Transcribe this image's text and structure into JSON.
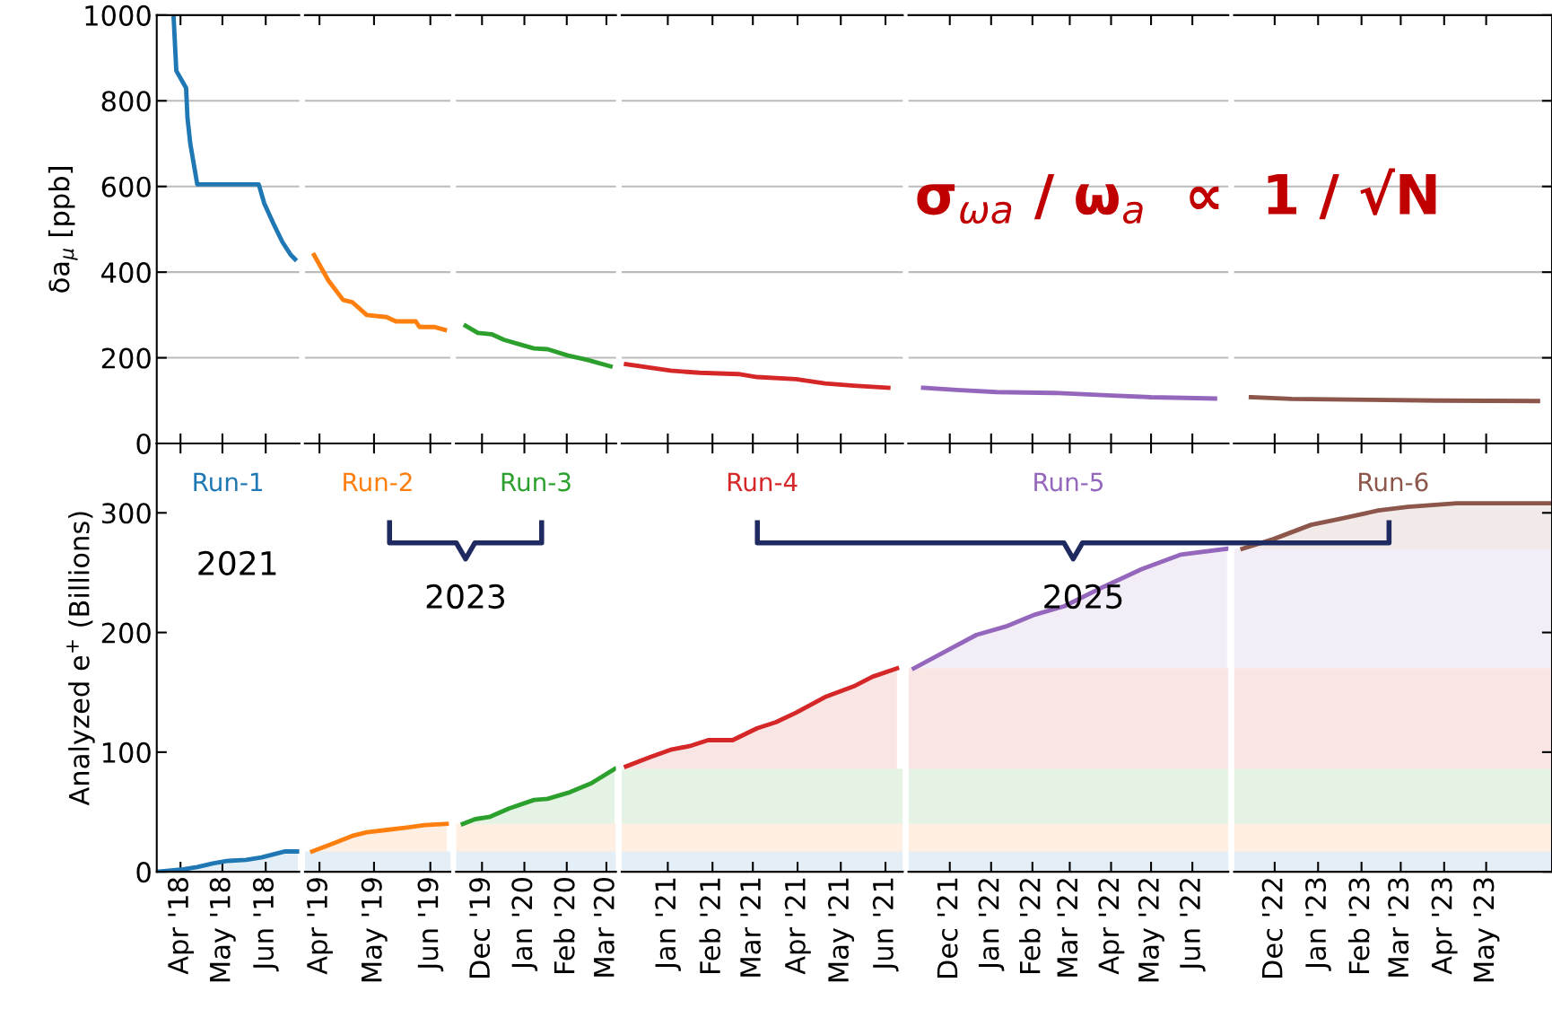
{
  "chart_data": [
    {
      "type": "line",
      "ylabel": "δa$_{μ}$ [ppb]",
      "xlim": [
        "2018-03-15",
        "2018-06-25"
      ],
      "ylim": [
        0,
        1000
      ],
      "yticks": [
        0,
        200,
        400,
        600,
        800,
        1000
      ],
      "grid": "y",
      "tick_labels": "y",
      "xticks": [
        {
          "value": "2018-04-01",
          "label": null
        },
        {
          "value": "2018-05-01",
          "label": null
        },
        {
          "value": "2018-06-01",
          "label": null
        }
      ],
      "series": [
        {
          "color": "#1f77b4",
          "x": [
            "2018-03-27",
            "2018-03-29",
            "2018-04-05",
            "2018-04-06",
            "2018-04-08",
            "2018-04-13",
            "2018-05-27",
            "2018-05-31",
            "2018-06-07",
            "2018-06-13",
            "2018-06-19",
            "2018-06-22"
          ],
          "values": [
            1000,
            870,
            830,
            760,
            700,
            605,
            605,
            560,
            510,
            470,
            440,
            430
          ]
        }
      ]
    },
    {
      "type": "line",
      "xlim": [
        "2019-03-24",
        "2019-06-12"
      ],
      "ylim": [
        0,
        1000
      ],
      "yticks": [
        0,
        200,
        400,
        600,
        800,
        1000
      ],
      "grid": "y",
      "tick_labels": false,
      "xticks": [
        {
          "value": "2019-04-01",
          "label": null
        },
        {
          "value": "2019-05-01",
          "label": null
        },
        {
          "value": "2019-06-01",
          "label": null
        }
      ],
      "series": [
        {
          "color": "#ff7f0e",
          "x": [
            "2019-03-29",
            "2019-04-06",
            "2019-04-14",
            "2019-04-19",
            "2019-04-27",
            "2019-05-08",
            "2019-05-13",
            "2019-05-24",
            "2019-05-26",
            "2019-06-03",
            "2019-06-09"
          ],
          "values": [
            440,
            380,
            335,
            330,
            300,
            295,
            285,
            285,
            272,
            272,
            265
          ]
        }
      ]
    },
    {
      "type": "line",
      "xlim": [
        "2019-11-12",
        "2020-03-08"
      ],
      "ylim": [
        0,
        1000
      ],
      "yticks": [
        0,
        200,
        400,
        600,
        800,
        1000
      ],
      "grid": "y",
      "tick_labels": false,
      "xticks": [
        {
          "value": "2019-12-01",
          "label": null
        },
        {
          "value": "2020-01-01",
          "label": null
        },
        {
          "value": "2020-02-01",
          "label": null
        },
        {
          "value": "2020-03-01",
          "label": null
        }
      ],
      "series": [
        {
          "color": "#2ca02c",
          "x": [
            "2019-11-19",
            "2019-11-28",
            "2019-12-08",
            "2019-12-17",
            "2019-12-28",
            "2020-01-08",
            "2020-01-18",
            "2020-02-02",
            "2020-02-16",
            "2020-03-04"
          ],
          "values": [
            275,
            258,
            255,
            242,
            232,
            222,
            220,
            205,
            195,
            180
          ]
        }
      ]
    },
    {
      "type": "line",
      "xlim": [
        "2020-11-30",
        "2021-06-13"
      ],
      "ylim": [
        0,
        1000
      ],
      "yticks": [
        0,
        200,
        400,
        600,
        800,
        1000
      ],
      "grid": "y",
      "tick_labels": false,
      "xticks": [
        {
          "value": "2021-01-01",
          "label": null
        },
        {
          "value": "2021-02-01",
          "label": null
        },
        {
          "value": "2021-03-01",
          "label": null
        },
        {
          "value": "2021-04-01",
          "label": null
        },
        {
          "value": "2021-05-01",
          "label": null
        },
        {
          "value": "2021-06-01",
          "label": null
        }
      ],
      "series": [
        {
          "color": "#d62728",
          "x": [
            "2020-12-03",
            "2021-01-03",
            "2021-01-23",
            "2021-02-19",
            "2021-03-04",
            "2021-03-31",
            "2021-04-20",
            "2021-05-10",
            "2021-06-03"
          ],
          "values": [
            185,
            170,
            165,
            162,
            155,
            150,
            140,
            135,
            130
          ]
        }
      ]
    },
    {
      "type": "line",
      "xlim": [
        "2021-10-31",
        "2022-06-28"
      ],
      "ylim": [
        0,
        1000
      ],
      "yticks": [
        0,
        200,
        400,
        600,
        800,
        1000
      ],
      "grid": "y",
      "tick_labels": false,
      "xticks": [
        {
          "value": "2021-12-01",
          "label": null
        },
        {
          "value": "2022-01-01",
          "label": null
        },
        {
          "value": "2022-02-01",
          "label": null
        },
        {
          "value": "2022-03-01",
          "label": null
        },
        {
          "value": "2022-04-01",
          "label": null
        },
        {
          "value": "2022-05-01",
          "label": null
        },
        {
          "value": "2022-06-01",
          "label": null
        }
      ],
      "annotations": [
        "σ$_{ωa}$ / ω$_{a}$  ∝  1 / √N"
      ],
      "series": [
        {
          "color": "#9467bd",
          "x": [
            "2021-11-11",
            "2021-12-06",
            "2022-01-05",
            "2022-02-17",
            "2022-04-02",
            "2022-05-01",
            "2022-06-18"
          ],
          "values": [
            130,
            125,
            120,
            118,
            112,
            108,
            105
          ]
        }
      ]
    },
    {
      "type": "line",
      "xlim": [
        "2022-11-02",
        "2023-06-17"
      ],
      "ylim": [
        0,
        1000
      ],
      "yticks": [
        0,
        200,
        400,
        600,
        800,
        1000
      ],
      "grid": "y",
      "tick_labels": false,
      "xticks": [
        {
          "value": "2022-12-01",
          "label": null
        },
        {
          "value": "2023-01-01",
          "label": null
        },
        {
          "value": "2023-02-01",
          "label": null
        },
        {
          "value": "2023-03-01",
          "label": null
        },
        {
          "value": "2023-04-01",
          "label": null
        },
        {
          "value": "2023-05-01",
          "label": null
        }
      ],
      "series": [
        {
          "color": "#8c564b",
          "x": [
            "2022-11-14",
            "2022-12-13",
            "2023-02-07",
            "2023-03-27",
            "2023-06-07"
          ],
          "values": [
            108,
            104,
            102,
            100,
            99
          ]
        }
      ]
    },
    {
      "type": "area",
      "ylabel": "Analyzed e$^{+}$ (Billions)",
      "xlim": [
        "2018-03-15",
        "2018-06-25"
      ],
      "ylim": [
        0,
        358
      ],
      "yticks": [
        0,
        100,
        200,
        300
      ],
      "xticks": [
        {
          "value": "2018-04-01",
          "label": "Apr '18"
        },
        {
          "value": "2018-05-01",
          "label": "May '18"
        },
        {
          "value": "2018-06-01",
          "label": "Jun '18"
        }
      ],
      "annotations": [
        "2021"
      ],
      "series": [
        {
          "name": "Run-1",
          "color": "#1f77b4",
          "line_style": "solid",
          "x": [
            "2018-03-15",
            "2018-04-03",
            "2018-04-13",
            "2018-04-24",
            "2018-05-04",
            "2018-05-18",
            "2018-05-29",
            "2018-06-08",
            "2018-06-15",
            "2018-06-24"
          ],
          "values": [
            0,
            2,
            4,
            7,
            9,
            10,
            12,
            15,
            17,
            17
          ]
        }
      ]
    },
    {
      "type": "area",
      "xlim": [
        "2019-03-24",
        "2019-06-12"
      ],
      "ylim": [
        0,
        358
      ],
      "yticks": [
        0,
        100,
        200,
        300
      ],
      "tick_labels": "x",
      "xticks": [
        {
          "value": "2019-04-01",
          "label": "Apr '19"
        },
        {
          "value": "2019-05-01",
          "label": "May '19"
        },
        {
          "value": "2019-06-01",
          "label": "Jun '19"
        }
      ],
      "series": [
        {
          "color": "#1f77b4",
          "x": [
            "2019-03-24",
            "2019-06-12"
          ],
          "values": [
            17,
            17
          ]
        },
        {
          "name": "Run-2",
          "color": "#ff7f0e",
          "line_style": "solid",
          "x": [
            "2019-03-28",
            "2019-04-09",
            "2019-04-19",
            "2019-04-27",
            "2019-05-08",
            "2019-05-19",
            "2019-05-29",
            "2019-06-10"
          ],
          "values": [
            17,
            24,
            30,
            33,
            35,
            37,
            39,
            40
          ]
        }
      ]
    },
    {
      "type": "area",
      "xlim": [
        "2019-11-12",
        "2020-03-08"
      ],
      "ylim": [
        0,
        358
      ],
      "yticks": [
        0,
        100,
        200,
        300
      ],
      "tick_labels": "x",
      "xticks": [
        {
          "value": "2019-12-01",
          "label": "Dec '19"
        },
        {
          "value": "2020-01-01",
          "label": "Jan '20"
        },
        {
          "value": "2020-02-01",
          "label": "Feb '20"
        },
        {
          "value": "2020-03-01",
          "label": "Mar '20"
        }
      ],
      "annotations": [
        "2023"
      ],
      "series": [
        {
          "color": "#1f77b4",
          "x": [
            "2019-11-12",
            "2020-03-08"
          ],
          "values": [
            17,
            17
          ]
        },
        {
          "color": "#ff7f0e",
          "x": [
            "2019-11-12",
            "2020-03-08"
          ],
          "values": [
            40,
            40
          ]
        },
        {
          "name": "Run-3",
          "color": "#2ca02c",
          "line_style": "solid",
          "x": [
            "2019-11-17",
            "2019-11-26",
            "2019-12-07",
            "2019-12-21",
            "2020-01-08",
            "2020-01-18",
            "2020-02-02",
            "2020-02-19",
            "2020-03-07"
          ],
          "values": [
            40,
            44,
            46,
            53,
            60,
            61,
            66,
            74,
            86
          ]
        }
      ]
    },
    {
      "type": "area",
      "xlim": [
        "2020-11-30",
        "2021-06-13"
      ],
      "ylim": [
        0,
        358
      ],
      "yticks": [
        0,
        100,
        200,
        300
      ],
      "tick_labels": "x",
      "xticks": [
        {
          "value": "2021-01-01",
          "label": "Jan '21"
        },
        {
          "value": "2021-02-01",
          "label": "Feb '21"
        },
        {
          "value": "2021-03-01",
          "label": "Mar '21"
        },
        {
          "value": "2021-04-01",
          "label": "Apr '21"
        },
        {
          "value": "2021-05-01",
          "label": "May '21"
        },
        {
          "value": "2021-06-01",
          "label": "Jun '21"
        }
      ],
      "series": [
        {
          "color": "#1f77b4",
          "x": [
            "2020-11-30",
            "2021-06-13"
          ],
          "values": [
            17,
            17
          ]
        },
        {
          "color": "#ff7f0e",
          "x": [
            "2020-11-30",
            "2021-06-13"
          ],
          "values": [
            40,
            40
          ]
        },
        {
          "color": "#2ca02c",
          "x": [
            "2020-11-30",
            "2021-06-13"
          ],
          "values": [
            86,
            86
          ]
        },
        {
          "name": "Run-4",
          "color": "#d62728",
          "line_style": "solid",
          "x": [
            "2020-12-03",
            "2020-12-20",
            "2021-01-03",
            "2021-01-16",
            "2021-01-29",
            "2021-02-15",
            "2021-03-04",
            "2021-03-17",
            "2021-03-31",
            "2021-04-20",
            "2021-05-10",
            "2021-05-23",
            "2021-06-09"
          ],
          "values": [
            88,
            96,
            102,
            105,
            110,
            110,
            120,
            125,
            133,
            146,
            155,
            163,
            170
          ]
        }
      ]
    },
    {
      "type": "area",
      "xlim": [
        "2021-10-31",
        "2022-06-28"
      ],
      "ylim": [
        0,
        358
      ],
      "yticks": [
        0,
        100,
        200,
        300
      ],
      "tick_labels": "x",
      "xticks": [
        {
          "value": "2021-12-01",
          "label": "Dec '21"
        },
        {
          "value": "2022-01-01",
          "label": "Jan '22"
        },
        {
          "value": "2022-02-01",
          "label": "Feb '22"
        },
        {
          "value": "2022-03-01",
          "label": "Mar '22"
        },
        {
          "value": "2022-04-01",
          "label": "Apr '22"
        },
        {
          "value": "2022-05-01",
          "label": "May '22"
        },
        {
          "value": "2022-06-01",
          "label": "Jun '22"
        }
      ],
      "annotations": [
        "2025"
      ],
      "series": [
        {
          "color": "#1f77b4",
          "x": [
            "2021-10-31",
            "2022-06-28"
          ],
          "values": [
            17,
            17
          ]
        },
        {
          "color": "#ff7f0e",
          "x": [
            "2021-10-31",
            "2022-06-28"
          ],
          "values": [
            40,
            40
          ]
        },
        {
          "color": "#2ca02c",
          "x": [
            "2021-10-31",
            "2022-06-28"
          ],
          "values": [
            86,
            86
          ]
        },
        {
          "color": "#d62728",
          "x": [
            "2021-10-31",
            "2022-06-28"
          ],
          "values": [
            170,
            170
          ]
        },
        {
          "name": "Run-5",
          "color": "#9467bd",
          "line_style": "solid",
          "x": [
            "2021-11-04",
            "2021-11-29",
            "2021-12-21",
            "2022-01-12",
            "2022-02-03",
            "2022-02-25",
            "2022-03-26",
            "2022-04-24",
            "2022-05-23",
            "2022-06-27"
          ],
          "values": [
            170,
            185,
            198,
            205,
            215,
            222,
            238,
            253,
            265,
            270
          ]
        }
      ]
    },
    {
      "type": "area",
      "xlim": [
        "2022-11-02",
        "2023-06-17"
      ],
      "ylim": [
        0,
        358
      ],
      "yticks": [
        0,
        100,
        200,
        300
      ],
      "tick_labels": "x",
      "xticks": [
        {
          "value": "2022-12-01",
          "label": "Dec '22"
        },
        {
          "value": "2023-01-01",
          "label": "Jan '23"
        },
        {
          "value": "2023-02-01",
          "label": "Feb '23"
        },
        {
          "value": "2023-03-01",
          "label": "Mar '23"
        },
        {
          "value": "2023-04-01",
          "label": "Apr '23"
        },
        {
          "value": "2023-05-01",
          "label": "May '23"
        }
      ],
      "series": [
        {
          "color": "#1f77b4",
          "x": [
            "2022-11-02",
            "2023-06-17"
          ],
          "values": [
            17,
            17
          ]
        },
        {
          "color": "#ff7f0e",
          "x": [
            "2022-11-02",
            "2023-06-17"
          ],
          "values": [
            40,
            40
          ]
        },
        {
          "color": "#2ca02c",
          "x": [
            "2022-11-02",
            "2023-06-17"
          ],
          "values": [
            86,
            86
          ]
        },
        {
          "color": "#d62728",
          "x": [
            "2022-11-02",
            "2023-06-17"
          ],
          "values": [
            170,
            170
          ]
        },
        {
          "color": "#9467bd",
          "x": [
            "2022-11-02",
            "2023-06-17"
          ],
          "values": [
            270,
            270
          ]
        },
        {
          "name": "Run-6",
          "color": "#8c564b",
          "line_style": "solid",
          "x": [
            "2022-11-08",
            "2022-11-30",
            "2022-12-27",
            "2023-01-17",
            "2023-02-13",
            "2023-03-06",
            "2023-04-10",
            "2023-06-11",
            "2023-06-17"
          ],
          "values": [
            270,
            278,
            290,
            295,
            302,
            305,
            308,
            308,
            308
          ]
        }
      ]
    }
  ]
}
